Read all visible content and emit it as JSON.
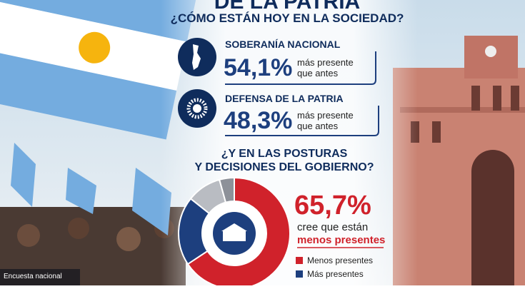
{
  "header": {
    "title": "DE LA PATRIA",
    "subtitle": "¿CÓMO ESTÁN HOY EN LA SOCIEDAD?"
  },
  "stats": [
    {
      "label": "SOBERANÍA NACIONAL",
      "value": "54,1%",
      "note_line1": "más presente",
      "note_line2": "que antes"
    },
    {
      "label": "DEFENSA DE LA PATRIA",
      "value": "48,3%",
      "note_line1": "más presente",
      "note_line2": "que antes"
    }
  ],
  "question": {
    "line1": "¿Y EN LAS POSTURAS",
    "line2": "Y DECISIONES DEL GOBIERNO?"
  },
  "chart_data": {
    "type": "donut",
    "categories": [
      "Menos presentes",
      "Más presentes",
      null,
      null
    ],
    "values": [
      65.7,
      20,
      10,
      4.3
    ],
    "colors": [
      "#d0222b",
      "#1d3f7e",
      "#b9bcc2",
      "#8d9199"
    ],
    "headline": "65,7%",
    "caption_line1": "cree que están",
    "caption_line2": "menos presentes"
  },
  "footer": {
    "source": "Encuesta nacional"
  }
}
